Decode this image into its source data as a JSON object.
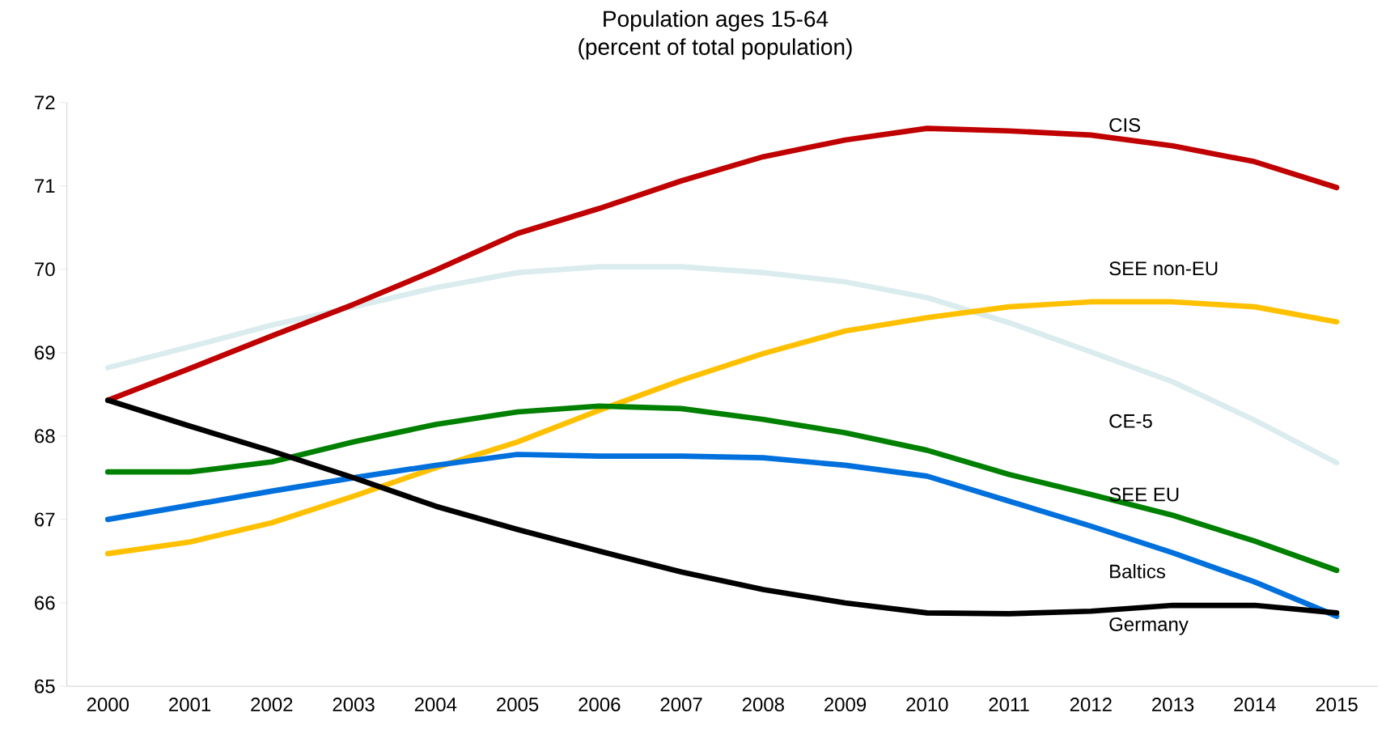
{
  "chart_data": {
    "type": "line",
    "title": "Population ages 15-64",
    "subtitle": "(percent of total population)",
    "categories": [
      "2000",
      "2001",
      "2002",
      "2003",
      "2004",
      "2005",
      "2006",
      "2007",
      "2008",
      "2009",
      "2010",
      "2011",
      "2012",
      "2013",
      "2014",
      "2015"
    ],
    "ylim": [
      65,
      72
    ],
    "yticks": [
      65,
      66,
      67,
      68,
      69,
      70,
      71,
      72
    ],
    "grid": false,
    "marker": "none",
    "line_style": "solid",
    "series": [
      {
        "name": "CE-5",
        "color": "#dbecee",
        "values": [
          68.82,
          69.07,
          69.33,
          69.55,
          69.78,
          69.96,
          70.03,
          70.03,
          69.96,
          69.85,
          69.66,
          69.36,
          69.01,
          68.65,
          68.19,
          67.68
        ]
      },
      {
        "name": "CIS",
        "color": "#c00000",
        "values": [
          68.43,
          68.81,
          69.2,
          69.58,
          69.99,
          70.43,
          70.73,
          71.06,
          71.35,
          71.55,
          71.69,
          71.66,
          71.61,
          71.48,
          71.29,
          70.98
        ]
      },
      {
        "name": "SEE non-EU",
        "color": "#ffc000",
        "values": [
          66.59,
          66.73,
          66.96,
          67.28,
          67.62,
          67.93,
          68.31,
          68.67,
          68.99,
          69.26,
          69.42,
          69.55,
          69.61,
          69.61,
          69.55,
          69.37
        ]
      },
      {
        "name": "Baltics",
        "color": "#0070dd",
        "values": [
          67.0,
          67.17,
          67.34,
          67.5,
          67.65,
          67.78,
          67.76,
          67.76,
          67.74,
          67.65,
          67.52,
          67.22,
          66.92,
          66.6,
          66.25,
          65.84
        ]
      },
      {
        "name": "SEE EU",
        "color": "#008000",
        "values": [
          67.57,
          67.57,
          67.69,
          67.93,
          68.14,
          68.29,
          68.36,
          68.33,
          68.2,
          68.04,
          67.83,
          67.54,
          67.3,
          67.05,
          66.74,
          66.39
        ]
      },
      {
        "name": "Germany",
        "color": "#000000",
        "values": [
          68.43,
          68.12,
          67.82,
          67.5,
          67.16,
          66.88,
          66.62,
          66.37,
          66.16,
          66.0,
          65.88,
          65.87,
          65.9,
          65.97,
          65.97,
          65.88
        ]
      }
    ]
  }
}
